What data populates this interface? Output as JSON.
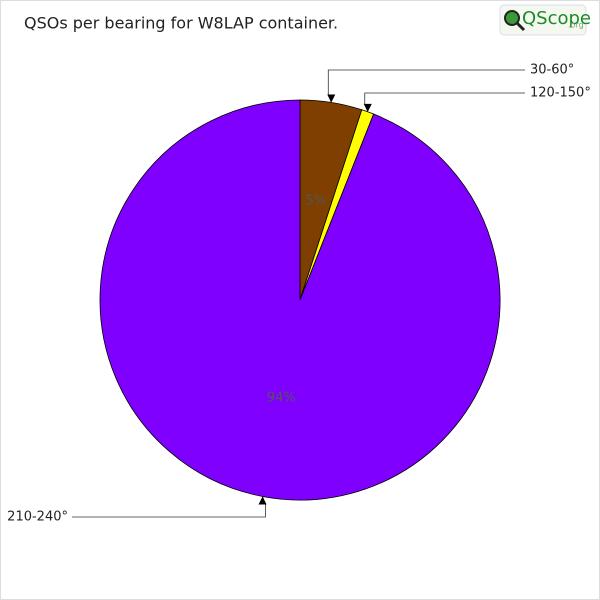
{
  "chart_data": {
    "type": "pie",
    "title": "QSOs per bearing for W8LAP container.",
    "logo": {
      "name": "QScope",
      "suffix": ".org"
    },
    "categories": [
      "30-60°",
      "120-150°",
      "210-240°"
    ],
    "values": [
      5,
      1,
      94
    ],
    "value_labels": [
      "5%",
      null,
      "94%"
    ],
    "colors": [
      "#7f3f00",
      "#ffff00",
      "#7f00ff"
    ]
  }
}
